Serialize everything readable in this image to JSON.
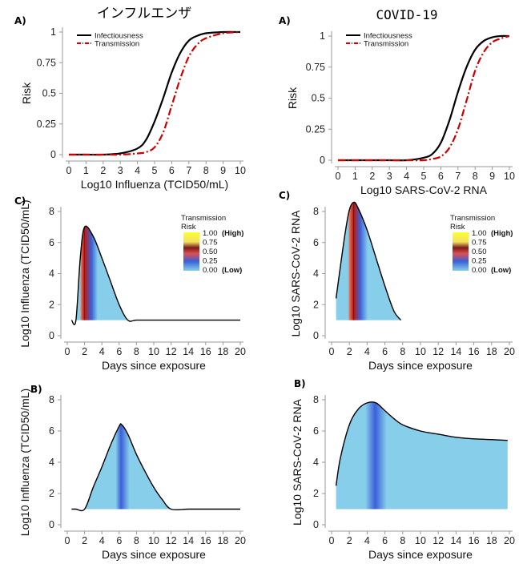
{
  "column_titles": {
    "left": "インフルエンザ",
    "right": "COVID-19"
  },
  "colorbar": {
    "title_line1": "Transmission",
    "title_line2": "Risk",
    "labels": [
      "1.00",
      "0.75",
      "0.50",
      "0.25",
      "0.00"
    ],
    "high": "(High)",
    "low": "(Low)"
  },
  "colors": {
    "infectiousness": "#000000",
    "transmission": "#cc0000",
    "fill_low": "#87ceeb",
    "fill_mid": "#3a5fd8",
    "fill_high": "#b22222",
    "fill_peak": "#ffff33"
  },
  "chart_data": [
    {
      "id": "flu_risk",
      "type": "line",
      "panel_label": "A)",
      "xlabel": "Log10 Influenza (TCID50/mL)",
      "ylabel": "Risk",
      "xlim": [
        0,
        10
      ],
      "ylim": [
        0,
        1
      ],
      "x_ticks": [
        "0",
        "1",
        "2",
        "3",
        "4",
        "5",
        "6",
        "7",
        "8",
        "9",
        "10"
      ],
      "y_ticks": [
        "0",
        "0.25",
        "0.5",
        "0.75",
        "1"
      ],
      "legend": [
        "Infectiousness",
        "Transmission"
      ],
      "series": [
        {
          "name": "Infectiousness",
          "x": [
            0,
            1,
            2,
            3,
            4,
            4.5,
            5,
            5.5,
            6,
            6.5,
            7,
            7.5,
            8,
            9,
            10
          ],
          "y": [
            0,
            0,
            0,
            0.01,
            0.05,
            0.12,
            0.27,
            0.46,
            0.67,
            0.83,
            0.93,
            0.97,
            0.99,
            1,
            1
          ]
        },
        {
          "name": "Transmission",
          "x": [
            0,
            1,
            2,
            3,
            4,
            4.5,
            5,
            5.5,
            6,
            6.5,
            7,
            7.5,
            8,
            9,
            10
          ],
          "y": [
            0,
            0,
            0,
            0,
            0.01,
            0.02,
            0.06,
            0.18,
            0.4,
            0.62,
            0.8,
            0.9,
            0.95,
            0.99,
            1
          ]
        }
      ]
    },
    {
      "id": "covid_risk",
      "type": "line",
      "panel_label": "A)",
      "xlabel": "Log10 SARS-CoV-2 RNA",
      "ylabel": "Risk",
      "xlim": [
        0,
        10
      ],
      "ylim": [
        0,
        1
      ],
      "x_ticks": [
        "0",
        "1",
        "2",
        "3",
        "4",
        "5",
        "6",
        "7",
        "8",
        "9",
        "10"
      ],
      "y_ticks": [
        "0",
        "0.25",
        "0.5",
        "0.75",
        "1"
      ],
      "legend": [
        "Infectiousness",
        "Transmission"
      ],
      "series": [
        {
          "name": "Infectiousness",
          "x": [
            0,
            1,
            2,
            3,
            4,
            5,
            5.5,
            6,
            6.5,
            7,
            7.5,
            8,
            8.5,
            9,
            9.5,
            10
          ],
          "y": [
            0,
            0,
            0,
            0,
            0,
            0.02,
            0.05,
            0.14,
            0.32,
            0.55,
            0.75,
            0.89,
            0.96,
            0.99,
            1,
            1
          ]
        },
        {
          "name": "Transmission",
          "x": [
            0,
            1,
            2,
            3,
            4,
            5,
            5.5,
            6,
            6.5,
            7,
            7.5,
            8,
            8.5,
            9,
            9.5,
            10
          ],
          "y": [
            0,
            0,
            0,
            0,
            0,
            0,
            0.01,
            0.03,
            0.1,
            0.25,
            0.48,
            0.72,
            0.87,
            0.95,
            0.98,
            1
          ]
        }
      ]
    },
    {
      "id": "flu_c",
      "type": "area",
      "panel_label": "C)",
      "xlabel": "Days since exposure",
      "ylabel": "Log10 Influenza (TCID50/mL)",
      "xlim": [
        0,
        20
      ],
      "ylim": [
        0,
        8
      ],
      "x_ticks": [
        "0",
        "2",
        "4",
        "6",
        "8",
        "10",
        "12",
        "14",
        "16",
        "18",
        "20"
      ],
      "y_ticks": [
        "0",
        "2",
        "4",
        "6",
        "8"
      ],
      "x": [
        0.5,
        1,
        1.5,
        2,
        3,
        4,
        5,
        6,
        7,
        8,
        10,
        12,
        14,
        16,
        18,
        20
      ],
      "y": [
        1,
        1,
        5,
        7,
        6.4,
        5,
        3.5,
        2,
        1,
        1,
        1,
        1,
        1,
        1,
        1,
        1
      ],
      "risk_peak_day": 2,
      "risk_band": [
        1.6,
        2.8
      ],
      "fill_range": [
        1,
        7
      ]
    },
    {
      "id": "covid_c",
      "type": "area",
      "panel_label": "C)",
      "xlabel": "Days since exposure",
      "ylabel": "Log10 SARS-CoV-2 RNA",
      "xlim": [
        0,
        20
      ],
      "ylim": [
        0,
        8
      ],
      "x_ticks": [
        "0",
        "2",
        "4",
        "6",
        "8",
        "10",
        "12",
        "14",
        "16",
        "18",
        "20"
      ],
      "y_ticks": [
        "0",
        "2",
        "4",
        "6",
        "8"
      ],
      "x": [
        0.5,
        1,
        1.5,
        2,
        2.5,
        3,
        4,
        5,
        6,
        7,
        7.8
      ],
      "y": [
        2.4,
        4.5,
        6.5,
        8.1,
        8.6,
        8.2,
        6.8,
        5,
        3.2,
        1.6,
        1
      ],
      "risk_peak_day": 2.5,
      "risk_band": [
        2.0,
        3.2
      ],
      "fill_range": [
        0.5,
        7.8
      ]
    },
    {
      "id": "flu_b",
      "type": "area",
      "panel_label": "B)",
      "xlabel": "Days since exposure",
      "ylabel": "Log10 Influenza (TCID50/mL)",
      "xlim": [
        0,
        20
      ],
      "ylim": [
        0,
        8
      ],
      "x_ticks": [
        "0",
        "2",
        "4",
        "6",
        "8",
        "10",
        "12",
        "14",
        "16",
        "18",
        "20"
      ],
      "y_ticks": [
        "0",
        "2",
        "4",
        "6",
        "8"
      ],
      "x": [
        0.5,
        1,
        2,
        3,
        4,
        5,
        6,
        6.3,
        7,
        8,
        9,
        10,
        11,
        12,
        14,
        16,
        18,
        20
      ],
      "y": [
        1,
        1,
        1,
        2.4,
        3.7,
        5.1,
        6.3,
        6.4,
        5.8,
        4.5,
        3.4,
        2.4,
        1.6,
        1,
        1,
        1,
        1,
        1
      ],
      "risk_peak_day": 6.2,
      "risk_band": [
        5.6,
        7.2
      ],
      "fill_range": [
        2,
        12
      ]
    },
    {
      "id": "covid_b",
      "type": "area",
      "panel_label": "B)",
      "xlabel": "Days since exposure",
      "ylabel": "Log10 SARS-CoV-2 RNA",
      "xlim": [
        0,
        20
      ],
      "ylim": [
        0,
        8
      ],
      "x_ticks": [
        "0",
        "2",
        "4",
        "6",
        "8",
        "10",
        "12",
        "14",
        "16",
        "18",
        "20"
      ],
      "y_ticks": [
        "0",
        "2",
        "4",
        "6",
        "8"
      ],
      "x": [
        0.5,
        1,
        2,
        3,
        4,
        5,
        6,
        7,
        8,
        10,
        12,
        14,
        16,
        18,
        19.8
      ],
      "y": [
        2.5,
        4.3,
        6.4,
        7.4,
        7.8,
        7.8,
        7.3,
        6.8,
        6.4,
        6,
        5.8,
        5.6,
        5.5,
        5.45,
        5.4
      ],
      "risk_peak_day": 4.9,
      "risk_band": [
        3.8,
        6.2
      ],
      "fill_range": [
        0.5,
        19.8
      ]
    }
  ]
}
